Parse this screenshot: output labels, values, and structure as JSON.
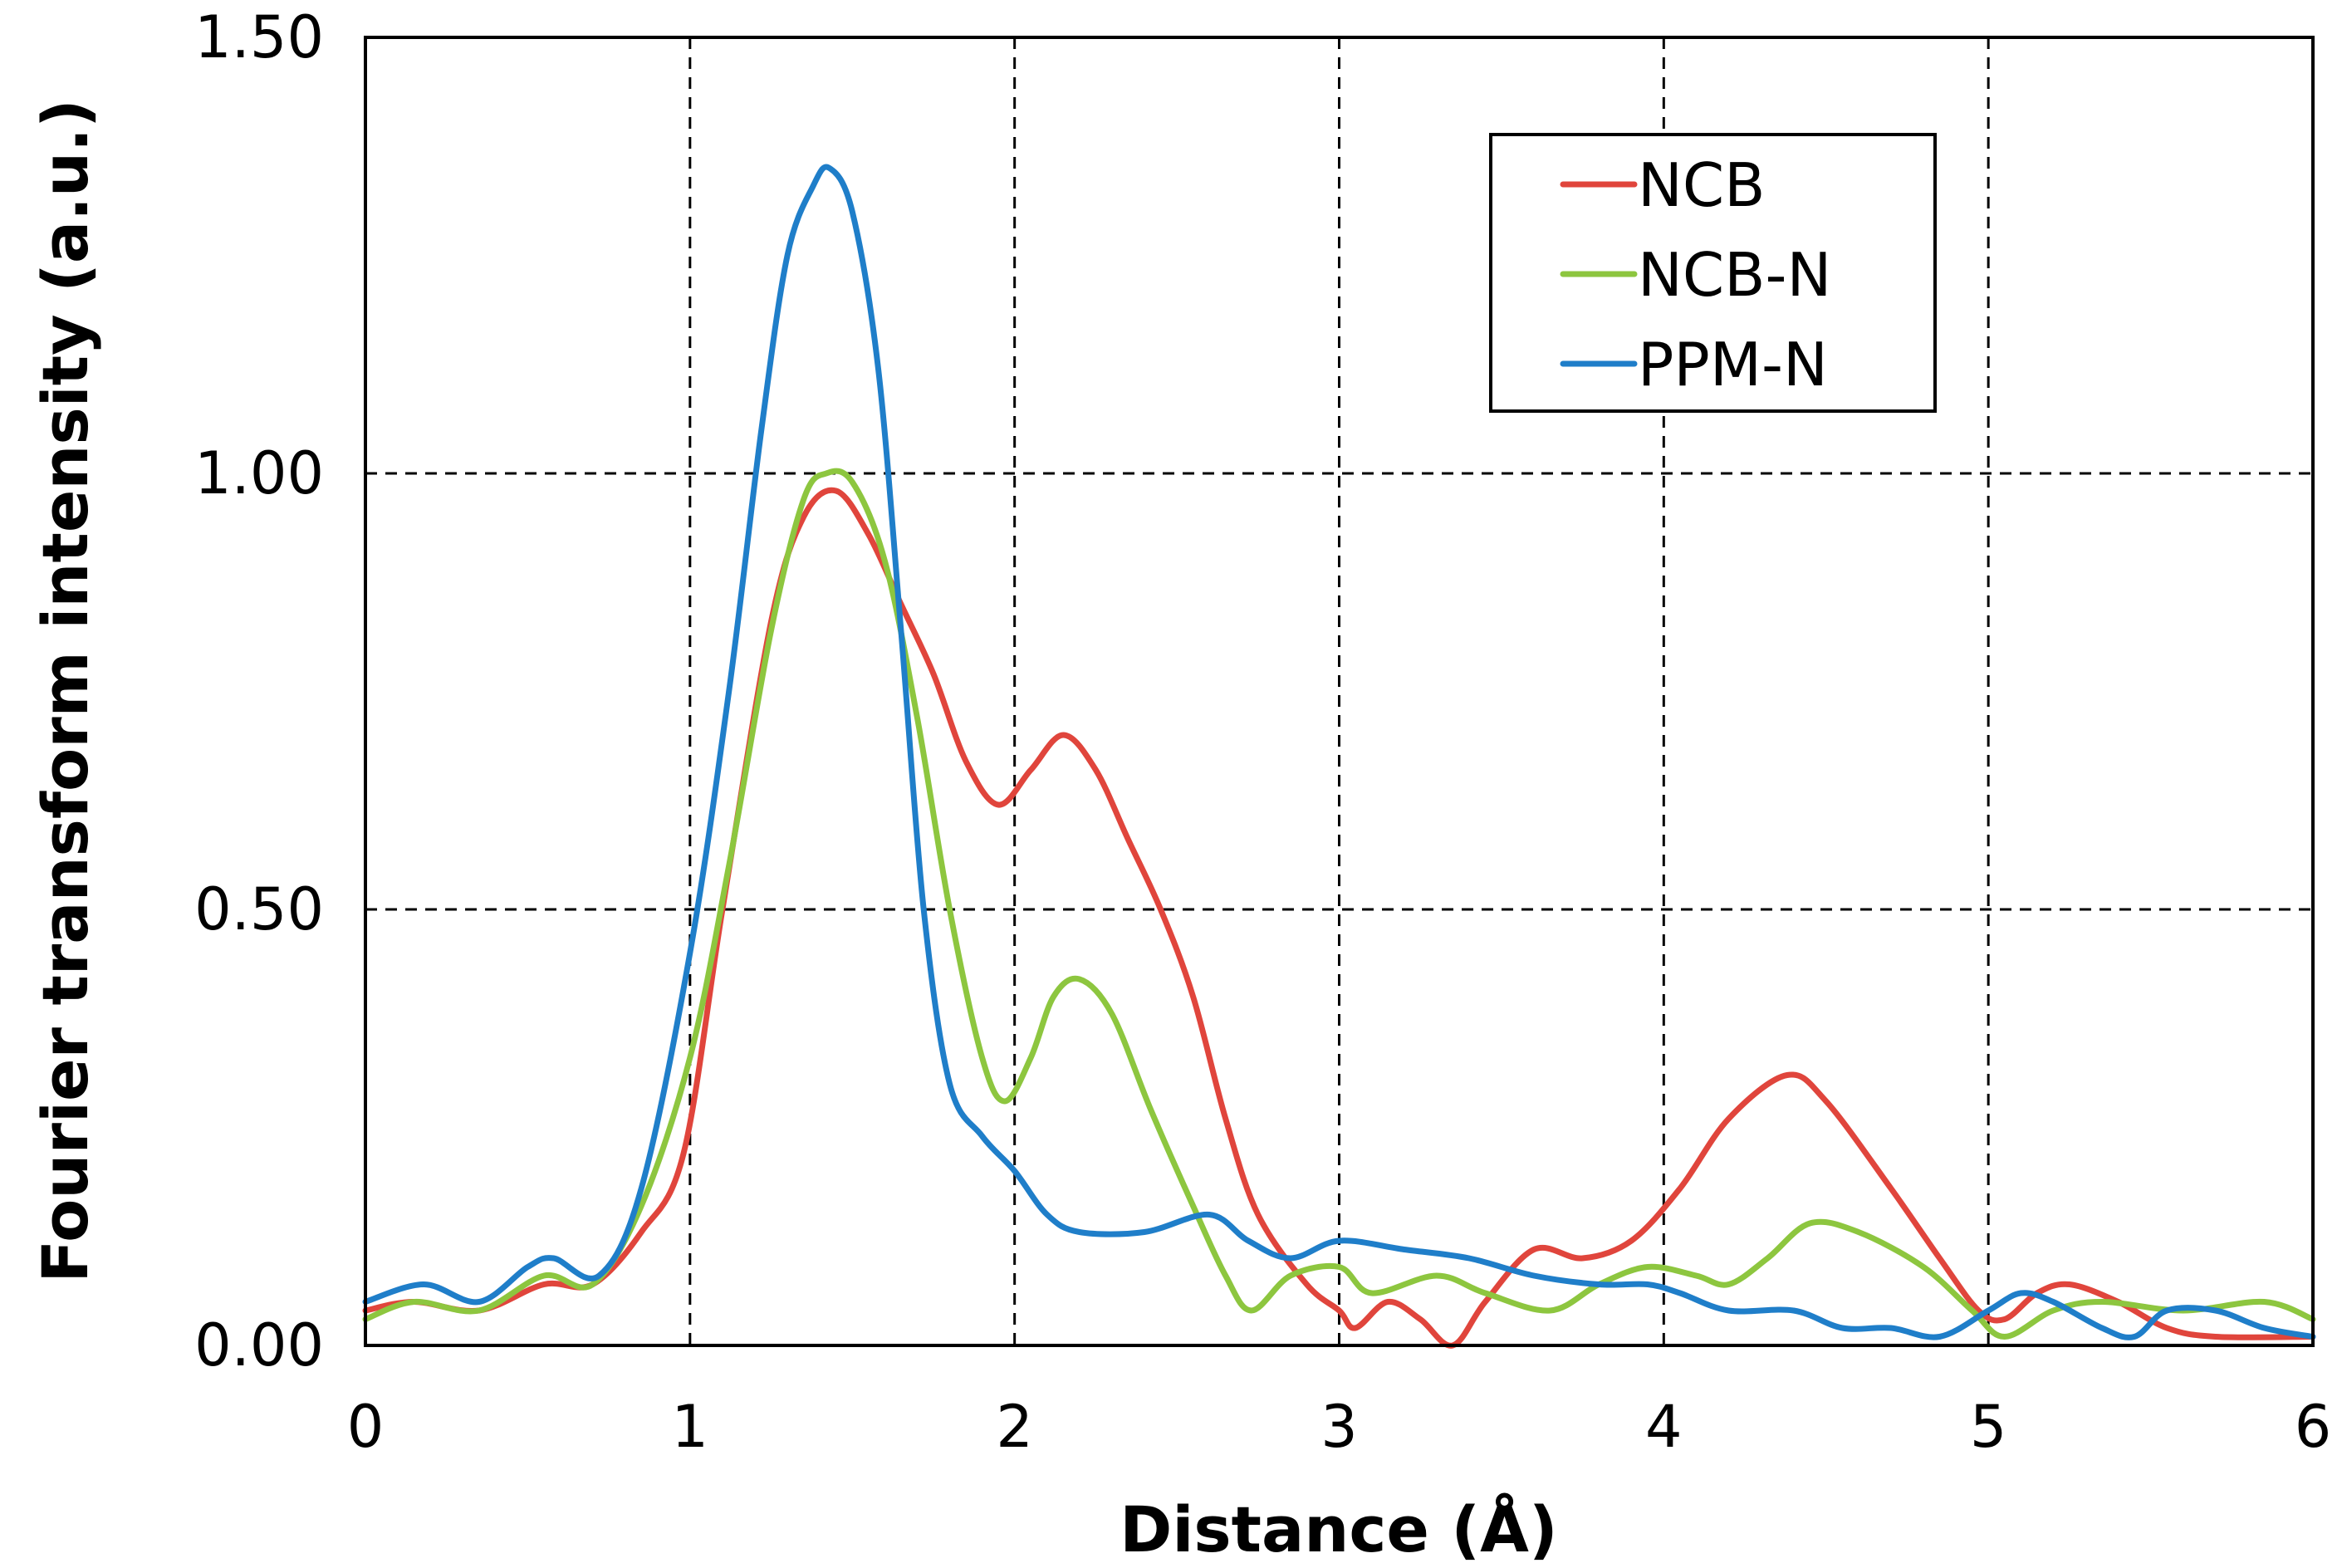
{
  "chart_data": {
    "type": "line",
    "xlabel": "Distance (Å)",
    "ylabel": "Fourier transform intensity (a.u.)",
    "xlim": [
      0,
      6
    ],
    "ylim": [
      0,
      1.5
    ],
    "x_ticks": [
      0,
      1,
      2,
      3,
      4,
      5,
      6
    ],
    "x_tick_labels": [
      "0",
      "1",
      "2",
      "3",
      "4",
      "5",
      "6"
    ],
    "y_ticks": [
      0,
      0.5,
      1.0,
      1.5
    ],
    "y_tick_labels": [
      "0.00",
      "0.50",
      "1.00",
      "1.50"
    ],
    "grid": true,
    "legend_position": "top-right",
    "series": [
      {
        "name": "NCB",
        "color": "#e0453c",
        "points": [
          [
            0,
            0.04
          ],
          [
            0.15,
            0.05
          ],
          [
            0.35,
            0.04
          ],
          [
            0.55,
            0.07
          ],
          [
            0.7,
            0.07
          ],
          [
            0.85,
            0.13
          ],
          [
            0.98,
            0.22
          ],
          [
            1.1,
            0.5
          ],
          [
            1.25,
            0.83
          ],
          [
            1.35,
            0.95
          ],
          [
            1.45,
            0.98
          ],
          [
            1.55,
            0.93
          ],
          [
            1.65,
            0.85
          ],
          [
            1.75,
            0.77
          ],
          [
            1.85,
            0.67
          ],
          [
            1.95,
            0.62
          ],
          [
            2.05,
            0.66
          ],
          [
            2.15,
            0.7
          ],
          [
            2.25,
            0.66
          ],
          [
            2.35,
            0.58
          ],
          [
            2.45,
            0.5
          ],
          [
            2.55,
            0.4
          ],
          [
            2.65,
            0.26
          ],
          [
            2.75,
            0.15
          ],
          [
            2.9,
            0.07
          ],
          [
            3.0,
            0.04
          ],
          [
            3.05,
            0.02
          ],
          [
            3.15,
            0.05
          ],
          [
            3.25,
            0.03
          ],
          [
            3.35,
            0.0
          ],
          [
            3.45,
            0.05
          ],
          [
            3.6,
            0.11
          ],
          [
            3.75,
            0.1
          ],
          [
            3.9,
            0.12
          ],
          [
            4.05,
            0.18
          ],
          [
            4.2,
            0.26
          ],
          [
            4.38,
            0.31
          ],
          [
            4.5,
            0.28
          ],
          [
            4.7,
            0.18
          ],
          [
            4.85,
            0.1
          ],
          [
            4.97,
            0.04
          ],
          [
            5.05,
            0.03
          ],
          [
            5.15,
            0.06
          ],
          [
            5.25,
            0.07
          ],
          [
            5.4,
            0.05
          ],
          [
            5.55,
            0.02
          ],
          [
            5.7,
            0.01
          ],
          [
            6.0,
            0.01
          ]
        ]
      },
      {
        "name": "NCB-N",
        "color": "#8dc63f",
        "points": [
          [
            0,
            0.03
          ],
          [
            0.15,
            0.05
          ],
          [
            0.35,
            0.04
          ],
          [
            0.55,
            0.08
          ],
          [
            0.7,
            0.07
          ],
          [
            0.85,
            0.16
          ],
          [
            1.0,
            0.33
          ],
          [
            1.12,
            0.55
          ],
          [
            1.25,
            0.82
          ],
          [
            1.35,
            0.97
          ],
          [
            1.42,
            1.0
          ],
          [
            1.5,
            0.99
          ],
          [
            1.6,
            0.9
          ],
          [
            1.7,
            0.72
          ],
          [
            1.8,
            0.5
          ],
          [
            1.9,
            0.33
          ],
          [
            1.97,
            0.28
          ],
          [
            2.05,
            0.33
          ],
          [
            2.12,
            0.4
          ],
          [
            2.2,
            0.42
          ],
          [
            2.3,
            0.38
          ],
          [
            2.42,
            0.27
          ],
          [
            2.55,
            0.16
          ],
          [
            2.65,
            0.08
          ],
          [
            2.73,
            0.04
          ],
          [
            2.85,
            0.08
          ],
          [
            3.0,
            0.09
          ],
          [
            3.1,
            0.06
          ],
          [
            3.3,
            0.08
          ],
          [
            3.45,
            0.06
          ],
          [
            3.65,
            0.04
          ],
          [
            3.8,
            0.07
          ],
          [
            3.95,
            0.09
          ],
          [
            4.1,
            0.08
          ],
          [
            4.2,
            0.07
          ],
          [
            4.32,
            0.1
          ],
          [
            4.45,
            0.14
          ],
          [
            4.6,
            0.13
          ],
          [
            4.8,
            0.09
          ],
          [
            4.95,
            0.04
          ],
          [
            5.05,
            0.01
          ],
          [
            5.2,
            0.04
          ],
          [
            5.35,
            0.05
          ],
          [
            5.6,
            0.04
          ],
          [
            5.85,
            0.05
          ],
          [
            6.0,
            0.03
          ]
        ]
      },
      {
        "name": "PPM-N",
        "color": "#1f7ec9",
        "points": [
          [
            0,
            0.05
          ],
          [
            0.18,
            0.07
          ],
          [
            0.35,
            0.05
          ],
          [
            0.5,
            0.09
          ],
          [
            0.58,
            0.1
          ],
          [
            0.72,
            0.08
          ],
          [
            0.85,
            0.18
          ],
          [
            1.0,
            0.45
          ],
          [
            1.12,
            0.75
          ],
          [
            1.22,
            1.05
          ],
          [
            1.3,
            1.25
          ],
          [
            1.38,
            1.33
          ],
          [
            1.43,
            1.35
          ],
          [
            1.5,
            1.3
          ],
          [
            1.58,
            1.12
          ],
          [
            1.65,
            0.82
          ],
          [
            1.72,
            0.5
          ],
          [
            1.8,
            0.3
          ],
          [
            1.9,
            0.24
          ],
          [
            2.0,
            0.2
          ],
          [
            2.1,
            0.15
          ],
          [
            2.2,
            0.13
          ],
          [
            2.4,
            0.13
          ],
          [
            2.6,
            0.15
          ],
          [
            2.72,
            0.12
          ],
          [
            2.85,
            0.1
          ],
          [
            3.0,
            0.12
          ],
          [
            3.2,
            0.11
          ],
          [
            3.4,
            0.1
          ],
          [
            3.6,
            0.08
          ],
          [
            3.8,
            0.07
          ],
          [
            3.95,
            0.07
          ],
          [
            4.05,
            0.06
          ],
          [
            4.2,
            0.04
          ],
          [
            4.4,
            0.04
          ],
          [
            4.55,
            0.02
          ],
          [
            4.7,
            0.02
          ],
          [
            4.85,
            0.01
          ],
          [
            5.0,
            0.04
          ],
          [
            5.1,
            0.06
          ],
          [
            5.2,
            0.05
          ],
          [
            5.35,
            0.02
          ],
          [
            5.45,
            0.01
          ],
          [
            5.55,
            0.04
          ],
          [
            5.7,
            0.04
          ],
          [
            5.85,
            0.02
          ],
          [
            6.0,
            0.01
          ]
        ]
      }
    ]
  }
}
